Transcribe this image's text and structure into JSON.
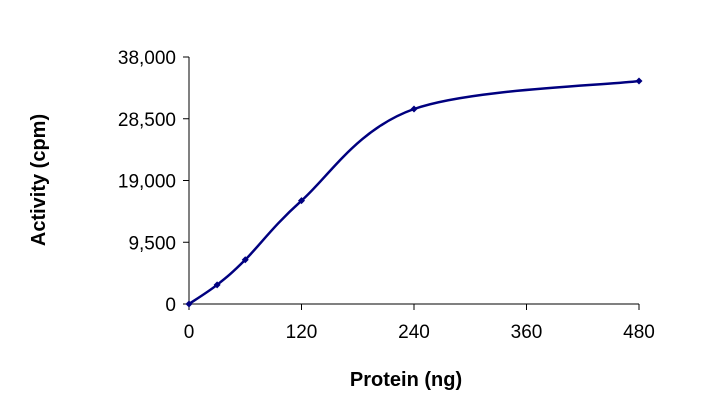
{
  "chart_data": {
    "type": "line",
    "title": "",
    "xlabel": "Protein (ng)",
    "ylabel": "Activity (cpm)",
    "xlim": [
      0,
      480
    ],
    "ylim": [
      0,
      38000
    ],
    "x_ticks": [
      0,
      120,
      240,
      360,
      480
    ],
    "x_tick_labels": [
      "0",
      "120",
      "240",
      "360",
      "480"
    ],
    "y_ticks": [
      0,
      9500,
      19000,
      28500,
      38000
    ],
    "y_tick_labels": [
      "0",
      "9,500",
      "19,000",
      "28,500",
      "38,000"
    ],
    "grid": false,
    "legend": "none",
    "series": [
      {
        "color": "#00007f",
        "marker": "diamond",
        "smooth": true,
        "points": [
          {
            "x": 0,
            "y": 0
          },
          {
            "x": 30,
            "y": 2950
          },
          {
            "x": 60,
            "y": 6800
          },
          {
            "x": 120,
            "y": 15900
          },
          {
            "x": 240,
            "y": 30000
          },
          {
            "x": 480,
            "y": 34300
          }
        ]
      }
    ]
  }
}
